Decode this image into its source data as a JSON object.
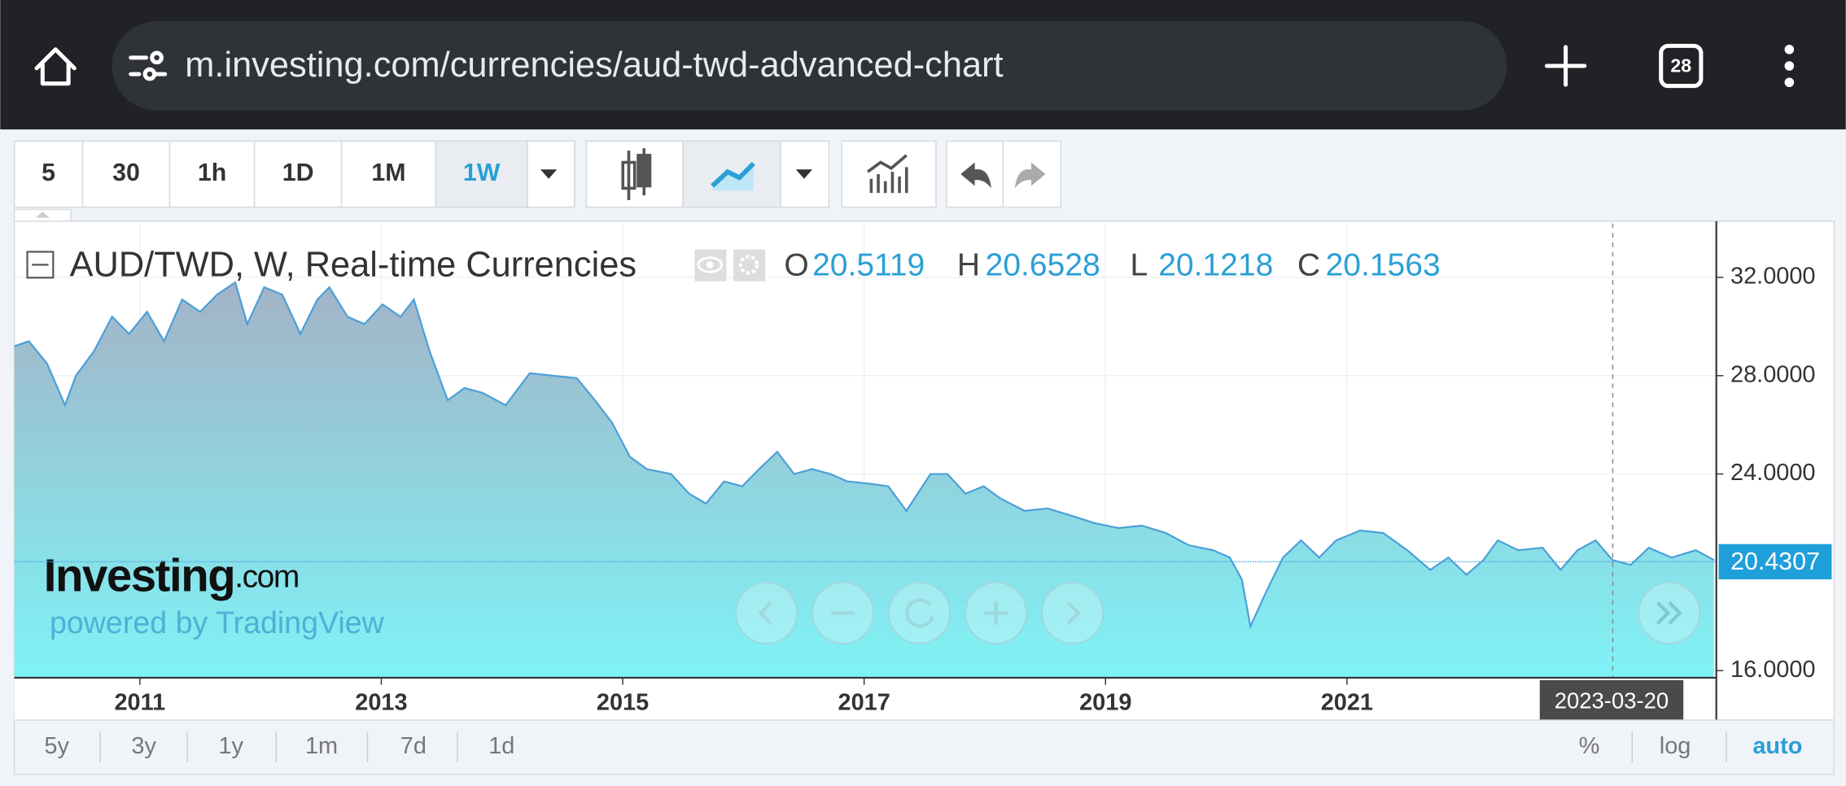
{
  "browser": {
    "url": "m.investing.com/currencies/aud-twd-advanced-chart",
    "tab_count": "28"
  },
  "toolbar": {
    "intervals": [
      "5",
      "30",
      "1h",
      "1D",
      "1M",
      "1W"
    ]
  },
  "chart_data": {
    "type": "area",
    "title": "AUD/TWD, W, Real-time Currencies",
    "ohlc": [
      {
        "label": "O",
        "value": 20.5119
      },
      {
        "label": "H",
        "value": 20.6528
      },
      {
        "label": "L",
        "value": 20.1218
      },
      {
        "label": "C",
        "value": 20.1563
      }
    ],
    "x": [
      2009.96,
      2010.08,
      2010.23,
      2010.38,
      2010.47,
      2010.62,
      2010.77,
      2010.91,
      2011.06,
      2011.2,
      2011.35,
      2011.5,
      2011.64,
      2011.79,
      2011.89,
      2012.03,
      2012.18,
      2012.33,
      2012.47,
      2012.57,
      2012.72,
      2012.86,
      2013.01,
      2013.16,
      2013.27,
      2013.4,
      2013.55,
      2013.69,
      2013.84,
      2014.03,
      2014.23,
      2014.42,
      2014.62,
      2014.77,
      2014.91,
      2015.06,
      2015.2,
      2015.4,
      2015.55,
      2015.69,
      2015.84,
      2015.99,
      2016.13,
      2016.28,
      2016.42,
      2016.57,
      2016.72,
      2016.86,
      2017.06,
      2017.2,
      2017.35,
      2017.55,
      2017.69,
      2017.84,
      2017.99,
      2018.13,
      2018.33,
      2018.52,
      2018.72,
      2018.91,
      2019.11,
      2019.3,
      2019.5,
      2019.69,
      2019.89,
      2020.03,
      2020.13,
      2020.2,
      2020.33,
      2020.47,
      2020.62,
      2020.77,
      2020.91,
      2021.11,
      2021.3,
      2021.5,
      2021.69,
      2021.84,
      2021.99,
      2022.13,
      2022.25,
      2022.42,
      2022.62,
      2022.77,
      2022.91,
      2023.06,
      2023.2,
      2023.35,
      2023.5,
      2023.69,
      2023.89,
      2024.04
    ],
    "values": [
      29.2,
      29.4,
      28.5,
      26.8,
      28.0,
      29.0,
      30.4,
      29.7,
      30.6,
      29.4,
      31.1,
      30.6,
      31.3,
      31.8,
      30.1,
      31.6,
      31.3,
      29.7,
      31.1,
      31.6,
      30.4,
      30.1,
      30.9,
      30.4,
      31.1,
      29.0,
      27.0,
      27.5,
      27.3,
      26.8,
      28.1,
      28.0,
      27.9,
      27.0,
      26.1,
      24.7,
      24.2,
      24.0,
      23.2,
      22.8,
      23.7,
      23.5,
      24.2,
      24.9,
      24.0,
      24.2,
      24.0,
      23.7,
      23.6,
      23.5,
      22.5,
      24.0,
      24.0,
      23.2,
      23.5,
      23.0,
      22.5,
      22.6,
      22.3,
      22.0,
      21.8,
      21.9,
      21.6,
      21.1,
      20.9,
      20.6,
      19.7,
      17.8,
      19.2,
      20.6,
      21.3,
      20.6,
      21.3,
      21.7,
      21.6,
      20.9,
      20.1,
      20.6,
      19.9,
      20.5,
      21.3,
      20.9,
      21.0,
      20.1,
      20.9,
      21.3,
      20.5,
      20.3,
      21.0,
      20.6,
      20.9,
      20.5
    ],
    "color": "#4a9fd8",
    "xlim": [
      2009.96,
      2024.06
    ],
    "xticks": [
      2011,
      2013,
      2015,
      2017,
      2019,
      2021
    ],
    "ylim": [
      15.71,
      34.19
    ],
    "yticks": [
      {
        "value": 16,
        "label": "16.0000"
      },
      {
        "value": 24,
        "label": "24.0000"
      },
      {
        "value": 28,
        "label": "28.0000"
      },
      {
        "value": 32,
        "label": "32.0000"
      }
    ],
    "grid": true,
    "last_price": 20.4307,
    "crosshair_label": "2023-03-20"
  },
  "branding": {
    "logo": "Investing",
    "logo_suffix": ".com",
    "powered_by": "powered by TradingView"
  },
  "ranges": [
    "5y",
    "3y",
    "1y",
    "1m",
    "7d",
    "1d"
  ],
  "scale_options": [
    "%",
    "log",
    "auto"
  ]
}
